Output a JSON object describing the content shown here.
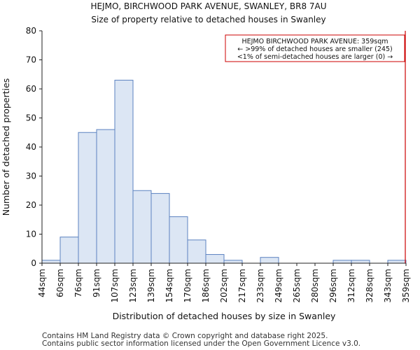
{
  "chart_data": {
    "type": "bar",
    "title": "HEJMO, BIRCHWOOD PARK AVENUE, SWANLEY, BR8 7AU",
    "subtitle": "Size of property relative to detached houses in Swanley",
    "xlabel": "Distribution of detached houses by size in Swanley",
    "ylabel": "Number of detached properties",
    "ylim": [
      0,
      80
    ],
    "yticks": [
      0,
      10,
      20,
      30,
      40,
      50,
      60,
      70,
      80
    ],
    "bin_edges": [
      "44sqm",
      "60sqm",
      "76sqm",
      "91sqm",
      "107sqm",
      "123sqm",
      "139sqm",
      "154sqm",
      "170sqm",
      "186sqm",
      "202sqm",
      "217sqm",
      "233sqm",
      "249sqm",
      "265sqm",
      "280sqm",
      "296sqm",
      "312sqm",
      "328sqm",
      "343sqm",
      "359sqm"
    ],
    "values": [
      1,
      9,
      45,
      46,
      63,
      25,
      24,
      16,
      8,
      3,
      1,
      0,
      2,
      0,
      0,
      0,
      1,
      1,
      0,
      1
    ],
    "grid": false,
    "marker": {
      "value": "359sqm",
      "bin_position": 20,
      "color": "#cc0000"
    },
    "annotation": {
      "lines": [
        "HEJMO BIRCHWOOD PARK AVENUE: 359sqm",
        "← >99% of detached houses are smaller (245)",
        "<1% of semi-detached houses are larger (0) →"
      ],
      "placement": "top-right"
    },
    "colors": {
      "bar_fill": "#dce6f4",
      "bar_edge": "#5b82c0",
      "axis": "#222222"
    }
  },
  "footer": {
    "line1": "Contains HM Land Registry data © Crown copyright and database right 2025.",
    "line2": "Contains public sector information licensed under the Open Government Licence v3.0."
  }
}
